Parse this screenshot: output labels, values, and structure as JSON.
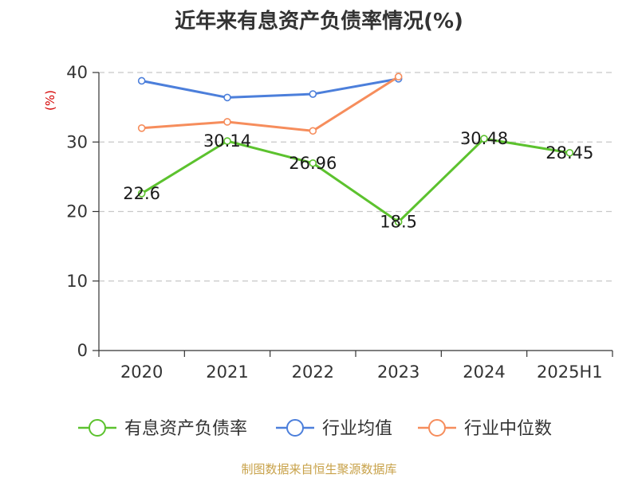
{
  "title": "近年来有息资产负债率情况(%)",
  "source": "制图数据来自恒生聚源数据库",
  "chart_data": {
    "type": "line",
    "title": "近年来有息资产负债率情况(%)",
    "ylabel": "(%)",
    "xlabel": "",
    "categories": [
      "2020",
      "2021",
      "2022",
      "2023",
      "2024",
      "2025H1"
    ],
    "ylim": [
      0,
      40
    ],
    "yticks": [
      0,
      10,
      20,
      30,
      40
    ],
    "grid": true,
    "legend_position": "bottom",
    "series": [
      {
        "name": "有息资产负债率",
        "color": "#5cc22e",
        "values": [
          22.6,
          30.14,
          26.96,
          18.5,
          30.48,
          28.45
        ],
        "labels": [
          "22.6",
          "30.14",
          "26.96",
          "18.5",
          "30.48",
          "28.45"
        ]
      },
      {
        "name": "行业均值",
        "color": "#4c7fdb",
        "values": [
          38.8,
          36.4,
          36.9,
          39.1,
          null,
          null
        ]
      },
      {
        "name": "行业中位数",
        "color": "#f68d5c",
        "values": [
          32.0,
          32.9,
          31.6,
          39.4,
          null,
          null
        ]
      }
    ]
  }
}
